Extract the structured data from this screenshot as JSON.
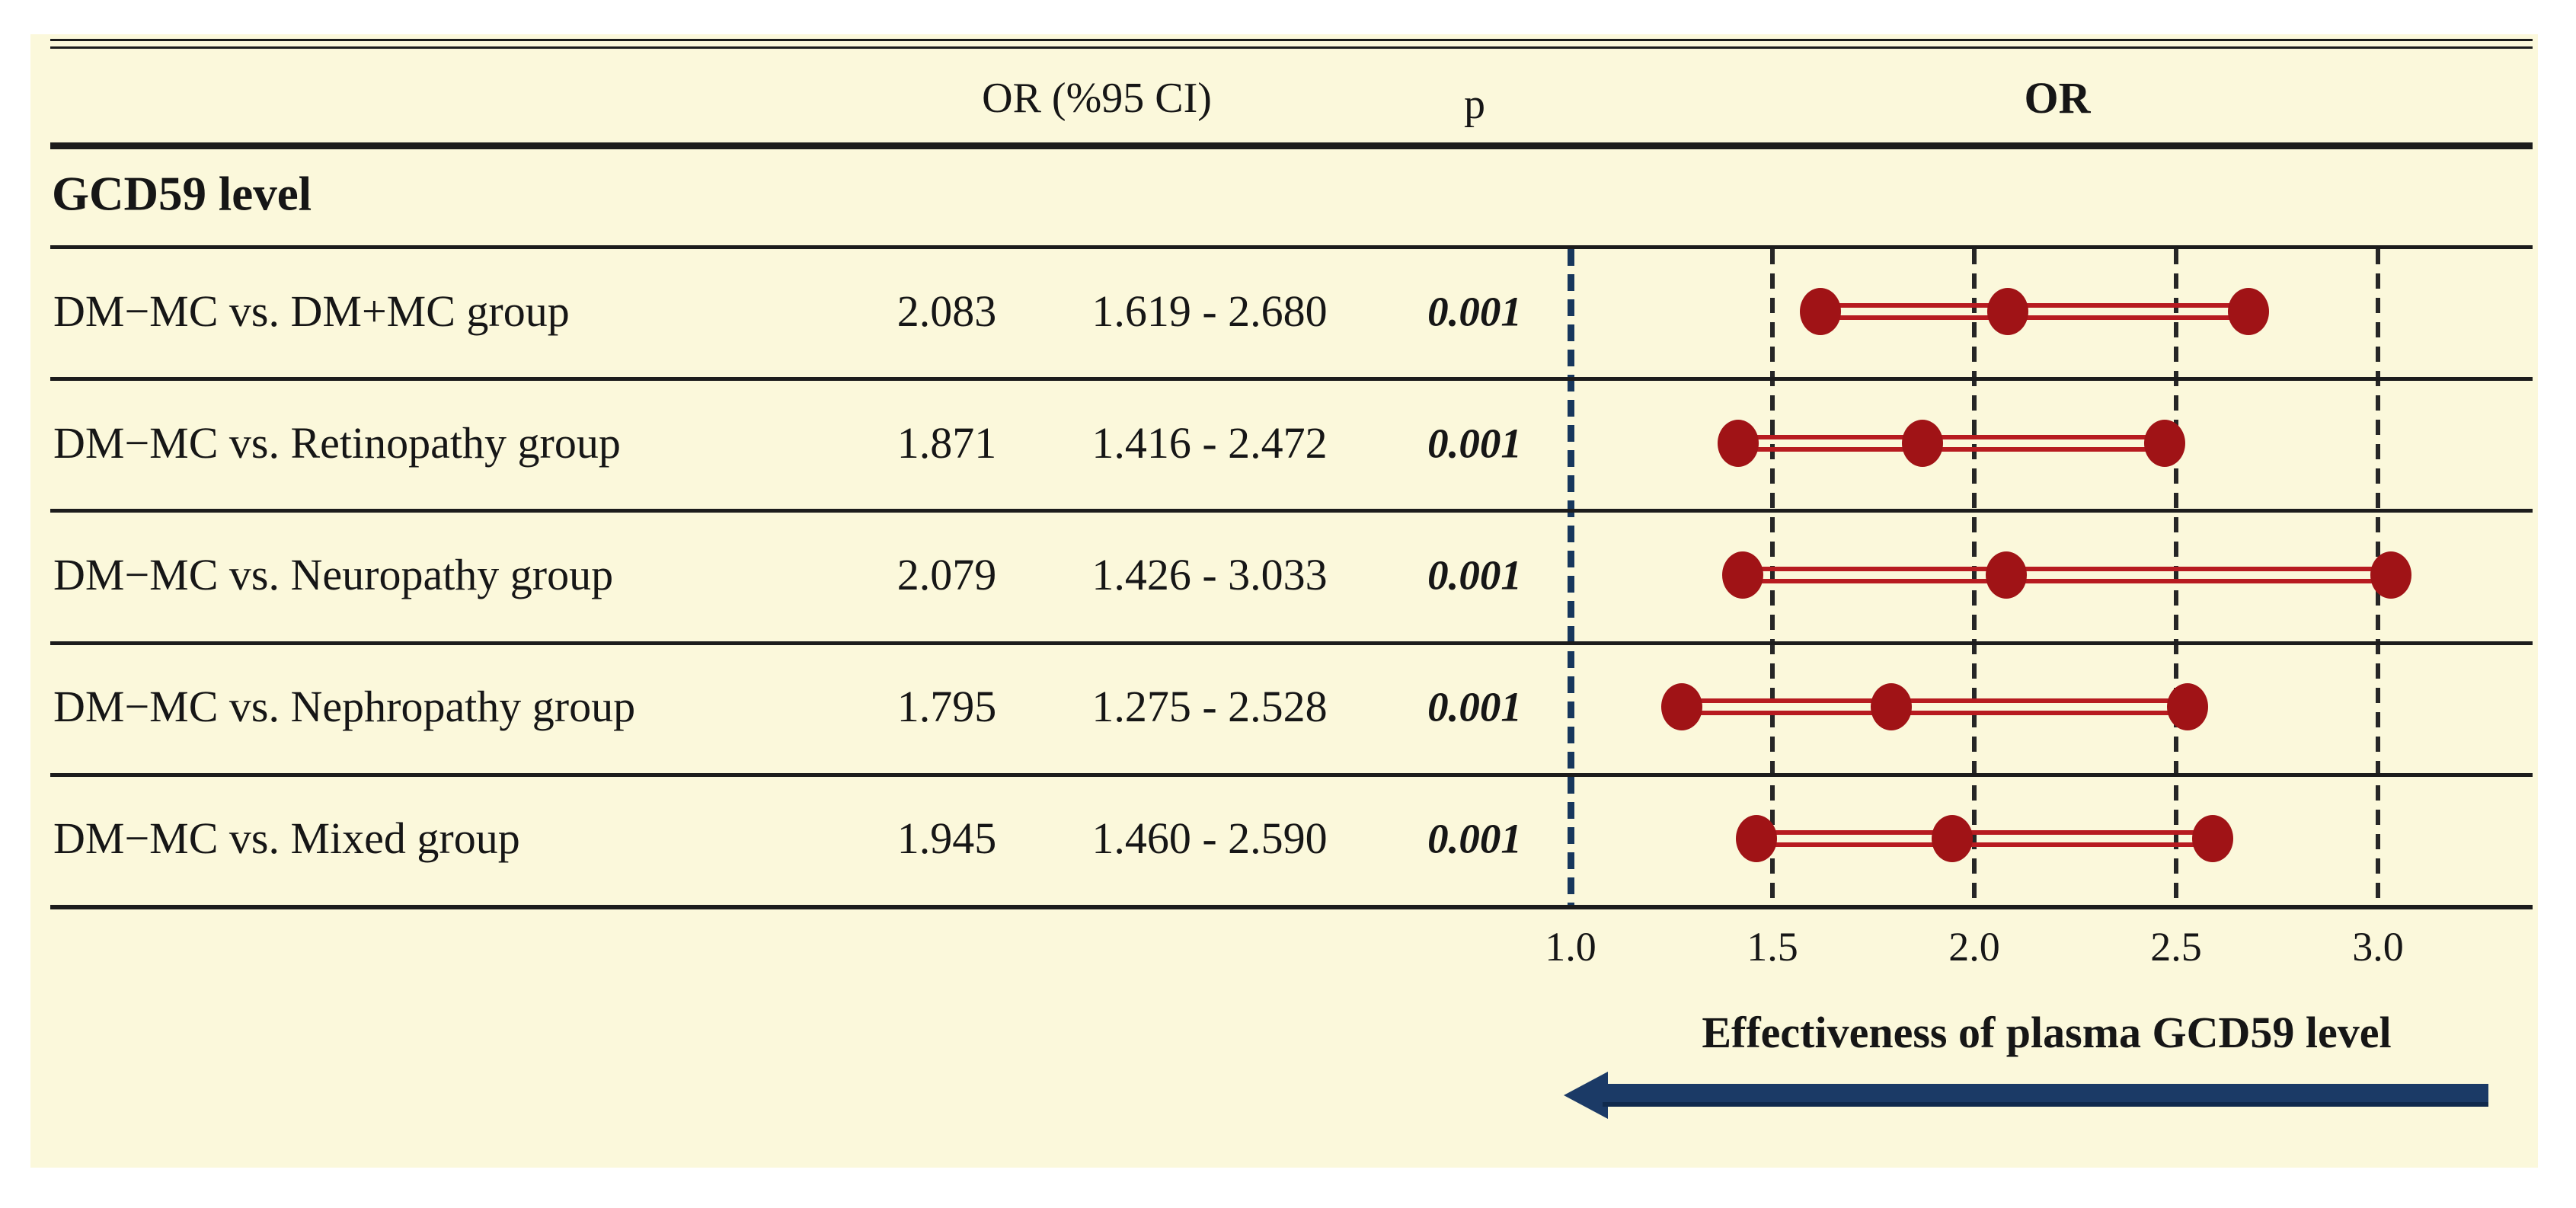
{
  "figure": {
    "group_title": "GCD59 level",
    "headers": {
      "or_ci": "OR (%95 CI)",
      "p": "p",
      "plot": "OR"
    }
  },
  "chart_data": {
    "type": "forest",
    "title": "OR",
    "group": "GCD59 level",
    "column_headers": [
      "OR (%95 CI)",
      "p",
      "OR"
    ],
    "rows": [
      {
        "label": "DM−MC vs. DM+MC group",
        "or": 2.083,
        "or_text": "2.083",
        "ci_low": 1.619,
        "ci_high": 2.68,
        "ci_text": "1.619 - 2.680",
        "p": "0.001"
      },
      {
        "label": "DM−MC vs. Retinopathy group",
        "or": 1.871,
        "or_text": "1.871",
        "ci_low": 1.416,
        "ci_high": 2.472,
        "ci_text": "1.416 - 2.472",
        "p": "0.001"
      },
      {
        "label": "DM−MC vs. Neuropathy group",
        "or": 2.079,
        "or_text": "2.079",
        "ci_low": 1.426,
        "ci_high": 3.033,
        "ci_text": "1.426 - 3.033",
        "p": "0.001"
      },
      {
        "label": "DM−MC vs. Nephropathy group",
        "or": 1.795,
        "or_text": "1.795",
        "ci_low": 1.275,
        "ci_high": 2.528,
        "ci_text": "1.275 - 2.528",
        "p": "0.001"
      },
      {
        "label": "DM−MC vs. Mixed group",
        "or": 1.945,
        "or_text": "1.945",
        "ci_low": 1.46,
        "ci_high": 2.59,
        "ci_text": "1.460 - 2.590",
        "p": "0.001"
      }
    ],
    "x_axis": {
      "ticks": [
        1.0,
        1.5,
        2.0,
        2.5,
        3.0
      ],
      "tick_labels": [
        "1.0",
        "1.5",
        "2.0",
        "2.5",
        "3.0"
      ],
      "range": [
        1.0,
        3.45
      ],
      "reference_value": 1.0,
      "label": "Effectiveness of plasma GCD59 level",
      "arrow_direction": "left",
      "grid": "dashed-vertical"
    },
    "legend": null,
    "colors": {
      "background": "#FBF8DB",
      "marker": "#A01316",
      "ci_line": "#B71B20",
      "reference_line": "#17375D",
      "arrow": "#1B3A66",
      "rule": "#1C1C1C",
      "text": "#161616"
    }
  }
}
